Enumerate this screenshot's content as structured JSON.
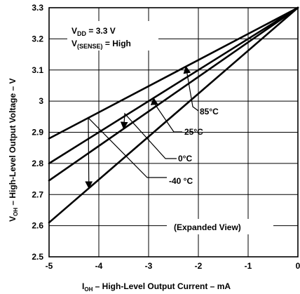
{
  "chart_data": {
    "type": "line",
    "xlim": [
      -5,
      0
    ],
    "ylim": [
      2.5,
      3.3
    ],
    "x_ticks": [
      "-5",
      "-4",
      "-3",
      "-2",
      "-1",
      "0"
    ],
    "y_ticks": [
      "2.5",
      "2.6",
      "2.7",
      "2.8",
      "2.9",
      "3",
      "3.1",
      "3.2",
      "3.3"
    ],
    "grid": true,
    "xlabel": {
      "main": "I",
      "sub": "OH",
      "rest": " – High-Level Output Current – mA"
    },
    "ylabel": {
      "main": "V",
      "sub": "OH",
      "rest": " – High-Level Output Voltage – V"
    },
    "conditions": [
      {
        "main": "V",
        "sub": "DD",
        "rest": " = 3.3 V"
      },
      {
        "main": "V",
        "sub": "(SENSE)",
        "rest": " = High"
      }
    ],
    "note": "(Expanded View)",
    "series": [
      {
        "name": "85°C",
        "x": [
          -5,
          0
        ],
        "y": [
          2.88,
          3.3
        ]
      },
      {
        "name": "25°C",
        "x": [
          -5,
          0
        ],
        "y": [
          2.8,
          3.3
        ]
      },
      {
        "name": "0°C",
        "x": [
          -5,
          0
        ],
        "y": [
          2.745,
          3.3
        ]
      },
      {
        "name": "-40 °C",
        "x": [
          -5,
          0
        ],
        "y": [
          2.61,
          3.3
        ]
      }
    ]
  }
}
